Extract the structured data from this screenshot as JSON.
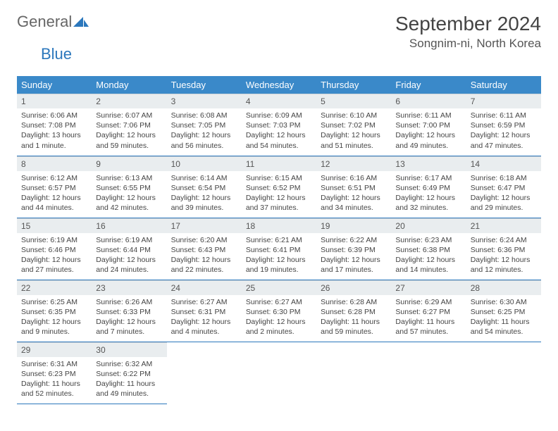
{
  "logo": {
    "part1": "General",
    "part2": "Blue"
  },
  "title": "September 2024",
  "location": "Songnim-ni, North Korea",
  "colors": {
    "header_bg": "#3a89c9",
    "header_text": "#ffffff",
    "daynum_bg": "#e9edef",
    "border": "#2b77bc",
    "logo_blue": "#2b77bc",
    "text": "#444444"
  },
  "weekdays": [
    "Sunday",
    "Monday",
    "Tuesday",
    "Wednesday",
    "Thursday",
    "Friday",
    "Saturday"
  ],
  "days": [
    {
      "n": "1",
      "sr": "6:06 AM",
      "ss": "7:08 PM",
      "dl": "13 hours and 1 minute."
    },
    {
      "n": "2",
      "sr": "6:07 AM",
      "ss": "7:06 PM",
      "dl": "12 hours and 59 minutes."
    },
    {
      "n": "3",
      "sr": "6:08 AM",
      "ss": "7:05 PM",
      "dl": "12 hours and 56 minutes."
    },
    {
      "n": "4",
      "sr": "6:09 AM",
      "ss": "7:03 PM",
      "dl": "12 hours and 54 minutes."
    },
    {
      "n": "5",
      "sr": "6:10 AM",
      "ss": "7:02 PM",
      "dl": "12 hours and 51 minutes."
    },
    {
      "n": "6",
      "sr": "6:11 AM",
      "ss": "7:00 PM",
      "dl": "12 hours and 49 minutes."
    },
    {
      "n": "7",
      "sr": "6:11 AM",
      "ss": "6:59 PM",
      "dl": "12 hours and 47 minutes."
    },
    {
      "n": "8",
      "sr": "6:12 AM",
      "ss": "6:57 PM",
      "dl": "12 hours and 44 minutes."
    },
    {
      "n": "9",
      "sr": "6:13 AM",
      "ss": "6:55 PM",
      "dl": "12 hours and 42 minutes."
    },
    {
      "n": "10",
      "sr": "6:14 AM",
      "ss": "6:54 PM",
      "dl": "12 hours and 39 minutes."
    },
    {
      "n": "11",
      "sr": "6:15 AM",
      "ss": "6:52 PM",
      "dl": "12 hours and 37 minutes."
    },
    {
      "n": "12",
      "sr": "6:16 AM",
      "ss": "6:51 PM",
      "dl": "12 hours and 34 minutes."
    },
    {
      "n": "13",
      "sr": "6:17 AM",
      "ss": "6:49 PM",
      "dl": "12 hours and 32 minutes."
    },
    {
      "n": "14",
      "sr": "6:18 AM",
      "ss": "6:47 PM",
      "dl": "12 hours and 29 minutes."
    },
    {
      "n": "15",
      "sr": "6:19 AM",
      "ss": "6:46 PM",
      "dl": "12 hours and 27 minutes."
    },
    {
      "n": "16",
      "sr": "6:19 AM",
      "ss": "6:44 PM",
      "dl": "12 hours and 24 minutes."
    },
    {
      "n": "17",
      "sr": "6:20 AM",
      "ss": "6:43 PM",
      "dl": "12 hours and 22 minutes."
    },
    {
      "n": "18",
      "sr": "6:21 AM",
      "ss": "6:41 PM",
      "dl": "12 hours and 19 minutes."
    },
    {
      "n": "19",
      "sr": "6:22 AM",
      "ss": "6:39 PM",
      "dl": "12 hours and 17 minutes."
    },
    {
      "n": "20",
      "sr": "6:23 AM",
      "ss": "6:38 PM",
      "dl": "12 hours and 14 minutes."
    },
    {
      "n": "21",
      "sr": "6:24 AM",
      "ss": "6:36 PM",
      "dl": "12 hours and 12 minutes."
    },
    {
      "n": "22",
      "sr": "6:25 AM",
      "ss": "6:35 PM",
      "dl": "12 hours and 9 minutes."
    },
    {
      "n": "23",
      "sr": "6:26 AM",
      "ss": "6:33 PM",
      "dl": "12 hours and 7 minutes."
    },
    {
      "n": "24",
      "sr": "6:27 AM",
      "ss": "6:31 PM",
      "dl": "12 hours and 4 minutes."
    },
    {
      "n": "25",
      "sr": "6:27 AM",
      "ss": "6:30 PM",
      "dl": "12 hours and 2 minutes."
    },
    {
      "n": "26",
      "sr": "6:28 AM",
      "ss": "6:28 PM",
      "dl": "11 hours and 59 minutes."
    },
    {
      "n": "27",
      "sr": "6:29 AM",
      "ss": "6:27 PM",
      "dl": "11 hours and 57 minutes."
    },
    {
      "n": "28",
      "sr": "6:30 AM",
      "ss": "6:25 PM",
      "dl": "11 hours and 54 minutes."
    },
    {
      "n": "29",
      "sr": "6:31 AM",
      "ss": "6:23 PM",
      "dl": "11 hours and 52 minutes."
    },
    {
      "n": "30",
      "sr": "6:32 AM",
      "ss": "6:22 PM",
      "dl": "11 hours and 49 minutes."
    }
  ],
  "labels": {
    "sunrise": "Sunrise: ",
    "sunset": "Sunset: ",
    "daylight": "Daylight: "
  }
}
